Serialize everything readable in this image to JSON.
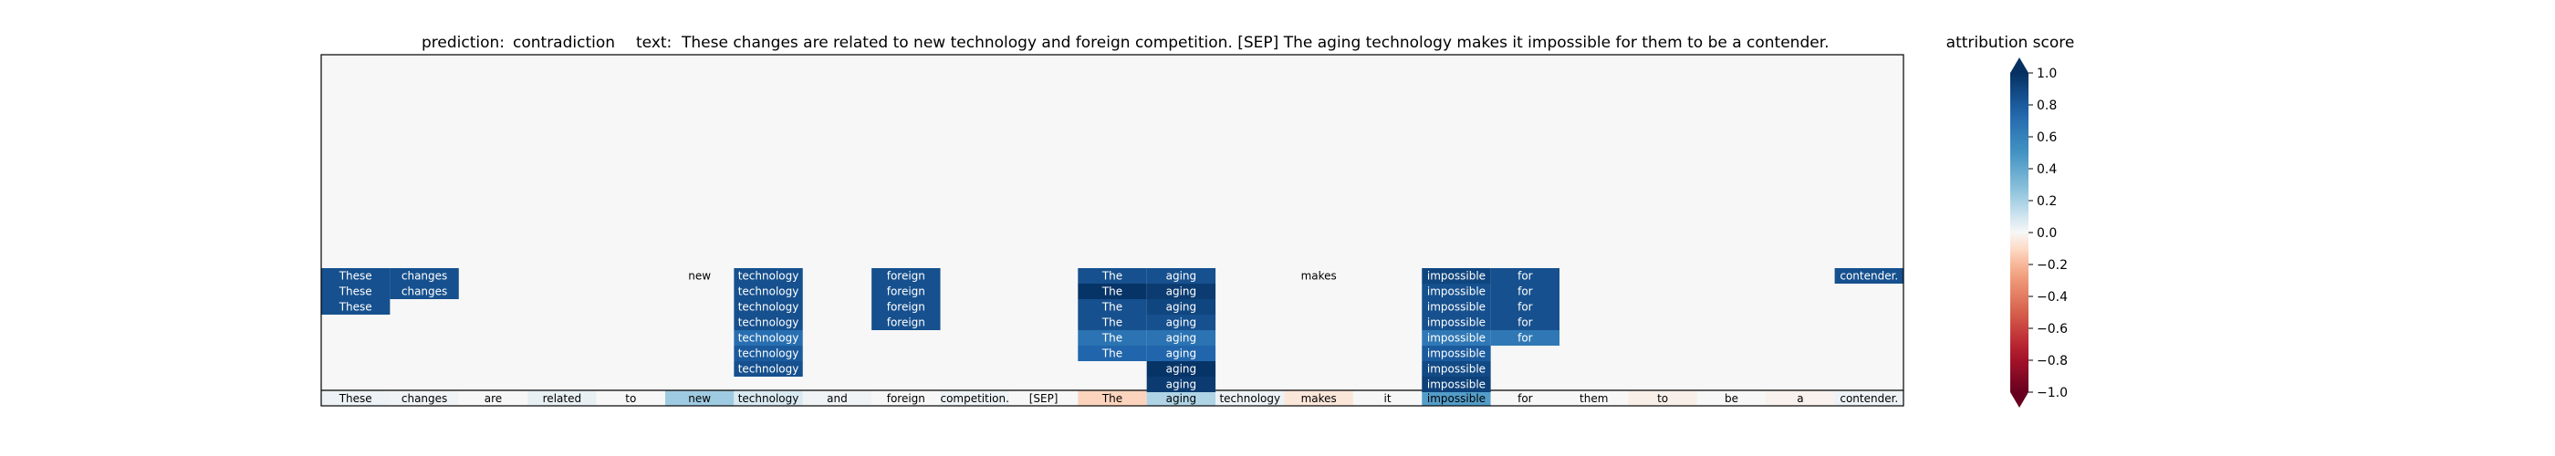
{
  "header": {
    "prediction_label": "prediction:",
    "prediction_value": "contradiction",
    "text_label": "text:",
    "text_value": "These changes are related to new technology and foreign competition. [SEP] The aging technology makes it impossible for them to be a contender."
  },
  "chart_data": {
    "type": "heatmap",
    "tokens": [
      "These",
      "changes",
      "are",
      "related",
      "to",
      "new",
      "technology",
      "and",
      "foreign",
      "competition.",
      "[SEP]",
      "The",
      "aging",
      "technology",
      "makes",
      "it",
      "impossible",
      "for",
      "them",
      "to",
      "be",
      "a",
      "contender."
    ],
    "token_row_attribution": [
      0.03,
      0.02,
      0.0,
      0.04,
      0.0,
      0.22,
      0.08,
      0.02,
      0.0,
      0.03,
      0.0,
      -0.12,
      0.18,
      0.03,
      -0.06,
      0.0,
      0.45,
      0.0,
      0.0,
      -0.03,
      0.0,
      -0.02,
      0.03
    ],
    "columns": [
      {
        "token": "These",
        "cells": [
          0.85,
          0.85,
          0.85
        ]
      },
      {
        "token": "changes",
        "cells": [
          0.85,
          0.85
        ]
      },
      {
        "token": "new",
        "cells": [
          0.0
        ]
      },
      {
        "token": "technology",
        "cells": [
          0.85,
          0.85,
          0.85,
          0.85,
          0.7,
          0.8,
          0.85
        ]
      },
      {
        "token": "foreign",
        "cells": [
          0.85,
          0.85,
          0.85,
          0.85
        ]
      },
      {
        "token": "The",
        "cells": [
          0.85,
          0.98,
          0.85,
          0.85,
          0.68,
          0.75
        ]
      },
      {
        "token": "aging",
        "cells": [
          0.85,
          0.95,
          0.9,
          0.85,
          0.68,
          0.75,
          0.98,
          0.95
        ]
      },
      {
        "token": "makes",
        "cells": [
          0.0
        ]
      },
      {
        "token": "impossible",
        "cells": [
          0.9,
          0.85,
          0.85,
          0.85,
          0.65,
          0.8,
          0.88,
          0.92
        ]
      },
      {
        "token": "for",
        "cells": [
          0.85,
          0.85,
          0.85,
          0.85,
          0.65
        ]
      },
      {
        "token": "contender.",
        "cells": [
          0.85
        ]
      }
    ],
    "colorbar": {
      "label": "attribution score",
      "range": [
        -1.0,
        1.0
      ],
      "ticks": [
        "1.0",
        "0.8",
        "0.6",
        "0.4",
        "0.2",
        "0.0",
        "−0.2",
        "−0.4",
        "−0.6",
        "−0.8",
        "−1.0"
      ],
      "tick_values": [
        1.0,
        0.8,
        0.6,
        0.4,
        0.2,
        0.0,
        -0.2,
        -0.4,
        -0.6,
        -0.8,
        -1.0
      ],
      "colormap": "RdBu",
      "extend": "both"
    },
    "colors": {
      "positive": "#053061",
      "zero": "#f7f7f7",
      "negative": "#67001f"
    }
  }
}
